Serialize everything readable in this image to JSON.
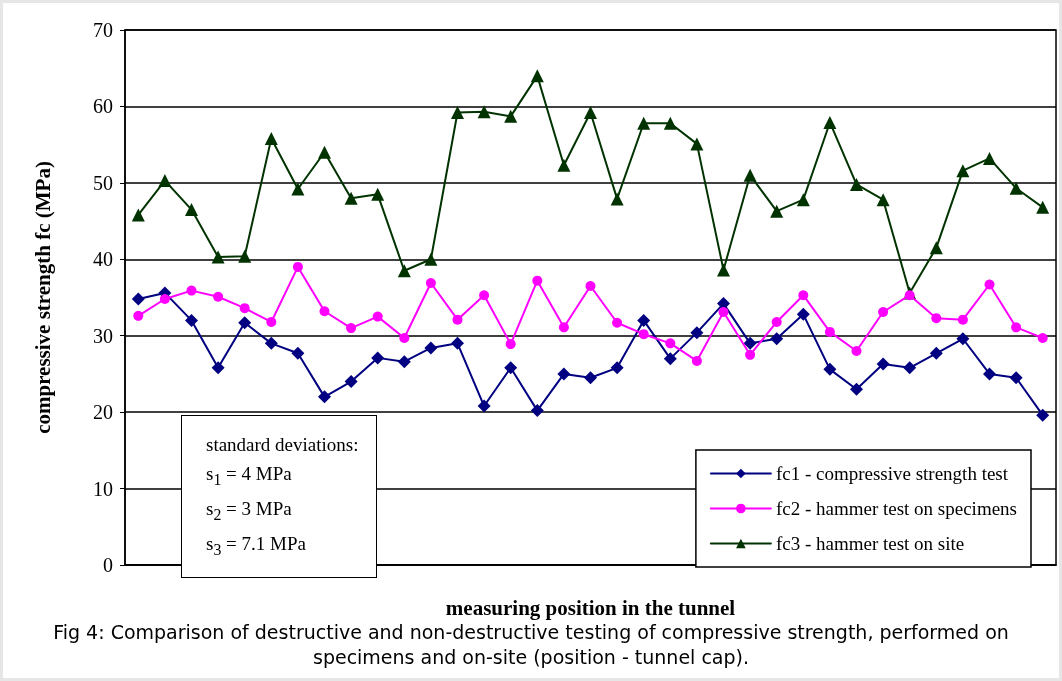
{
  "chart_data": {
    "type": "line",
    "xlabel": "measuring position in the tunnel",
    "ylabel": "compressive strength fc (MPa)",
    "categories": [
      null,
      null,
      null,
      null,
      null,
      null,
      null,
      null,
      null,
      null,
      null,
      null,
      null,
      null,
      null,
      null,
      null,
      null,
      null,
      null,
      null,
      null,
      null,
      null,
      null,
      null,
      null,
      null,
      null,
      null,
      null,
      null,
      null,
      null,
      null
    ],
    "series": [
      {
        "name": "fc1 - compressive strength test",
        "color": "#000080",
        "marker": "diamond",
        "values": [
          34.8,
          35.6,
          32,
          25.8,
          31.7,
          29,
          27.7,
          22,
          24,
          27.1,
          26.6,
          28.4,
          29,
          20.8,
          25.8,
          20.2,
          25,
          24.5,
          25.8,
          32,
          27,
          30.4,
          34.2,
          29,
          29.6,
          32.8,
          25.6,
          23,
          26.3,
          25.8,
          27.7,
          29.6,
          25,
          24.5,
          19.6
        ]
      },
      {
        "name": "fc2 - hammer test on specimens",
        "color": "#ff00ff",
        "marker": "circle",
        "values": [
          32.6,
          34.8,
          35.9,
          35.1,
          33.6,
          31.8,
          39,
          33.2,
          31,
          32.5,
          29.7,
          36.9,
          32.1,
          35.3,
          28.9,
          37.2,
          31.1,
          36.5,
          31.7,
          30.2,
          29,
          26.7,
          33.1,
          27.5,
          31.8,
          35.3,
          30.5,
          28,
          33.1,
          35.3,
          32.3,
          32.1,
          36.7,
          31.1,
          29.7
        ]
      },
      {
        "name": "fc3 - hammer test on site",
        "color": "#003300",
        "marker": "triangle",
        "values": [
          45.8,
          50.3,
          46.5,
          40.3,
          40.4,
          55.8,
          49.2,
          54,
          48,
          48.5,
          38.5,
          40,
          59.2,
          59.3,
          58.7,
          64,
          52.3,
          59.2,
          47.9,
          57.8,
          57.8,
          55.1,
          38.6,
          51,
          46.3,
          47.8,
          57.9,
          49.8,
          47.8,
          35.6,
          41.5,
          51.6,
          53.2,
          49.3,
          46.8
        ]
      }
    ],
    "ylim": [
      0,
      70
    ],
    "yticks": [
      0,
      10,
      20,
      30,
      40,
      50,
      60,
      70
    ],
    "grid": "y",
    "legend": "bottom right",
    "annotations": [
      "standard deviations:",
      "s$_{1}$ = 4 MPa",
      "s$_{2}$ = 3 MPa",
      "s$_{3}$ = 7.1 MPa",
      "Fig 4: Comparison of destructive and non-destructive testing of compressive strength, performed on specimens and on-site (position - tunnel cap)."
    ]
  }
}
